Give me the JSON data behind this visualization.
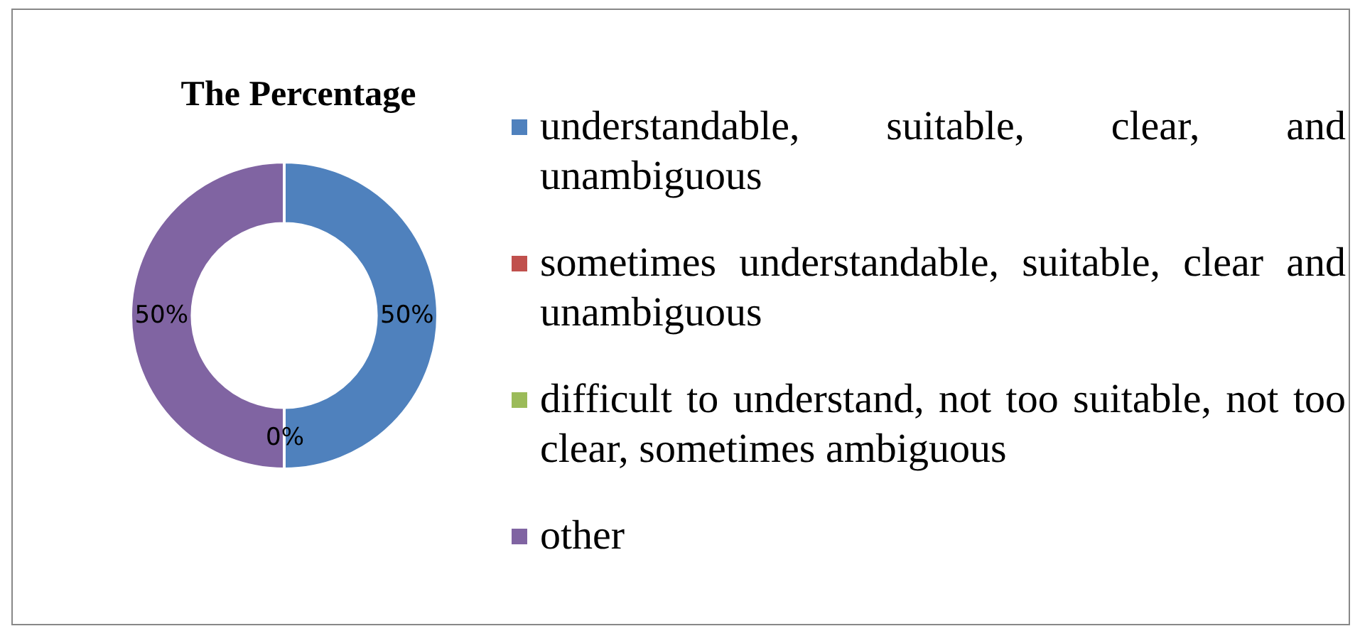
{
  "chart_data": {
    "type": "donut",
    "title": "The Percentage",
    "categories": [
      "understandable, suitable, clear, and unambiguous",
      "sometimes understandable, suitable, clear and unambiguous",
      "difficult to understand, not too suitable, not too clear, sometimes ambiguous",
      "other"
    ],
    "values": [
      50,
      0,
      0,
      50
    ],
    "colors": [
      "#4f81bd",
      "#c0504d",
      "#9bbb59",
      "#8064a2"
    ],
    "value_labels": [
      "50%",
      "0%",
      null,
      "50%"
    ],
    "legend": "right"
  }
}
